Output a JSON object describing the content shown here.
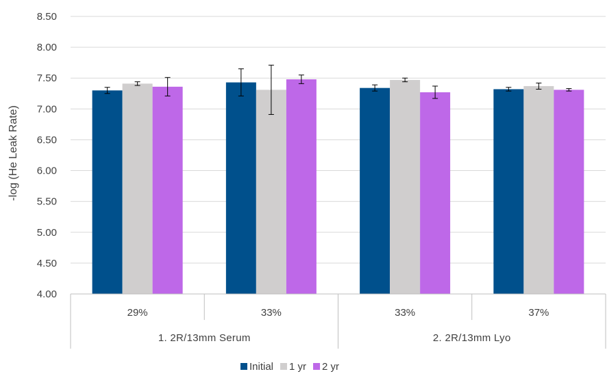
{
  "chart_data": {
    "type": "bar",
    "title": "",
    "xlabel": "",
    "ylabel": "-log (He Leak Rate)",
    "ylim": [
      4.0,
      8.5
    ],
    "yticks": [
      "4.00",
      "4.50",
      "5.00",
      "5.50",
      "6.00",
      "6.50",
      "7.00",
      "7.50",
      "8.00",
      "8.50"
    ],
    "grid": "horizontal",
    "legend": "bottom",
    "categories": [
      "29%",
      "33%",
      "33%",
      "37%"
    ],
    "groups": [
      {
        "label": "1. 2R/13mm Serum",
        "span": [
          0,
          1
        ]
      },
      {
        "label": "2. 2R/13mm Lyo",
        "span": [
          2,
          3
        ]
      }
    ],
    "series": [
      {
        "name": "Initial",
        "color": "#00508C",
        "values": [
          7.3,
          7.43,
          7.34,
          7.32
        ],
        "errors": [
          0.05,
          0.22,
          0.05,
          0.03
        ]
      },
      {
        "name": "1 yr",
        "color": "#D0CECE",
        "values": [
          7.41,
          7.31,
          7.47,
          7.37
        ],
        "errors": [
          0.03,
          0.4,
          0.03,
          0.05
        ]
      },
      {
        "name": "2 yr",
        "color": "#BE68E8",
        "values": [
          7.36,
          7.48,
          7.27,
          7.31
        ],
        "errors": [
          0.15,
          0.07,
          0.1,
          0.02
        ]
      }
    ]
  }
}
